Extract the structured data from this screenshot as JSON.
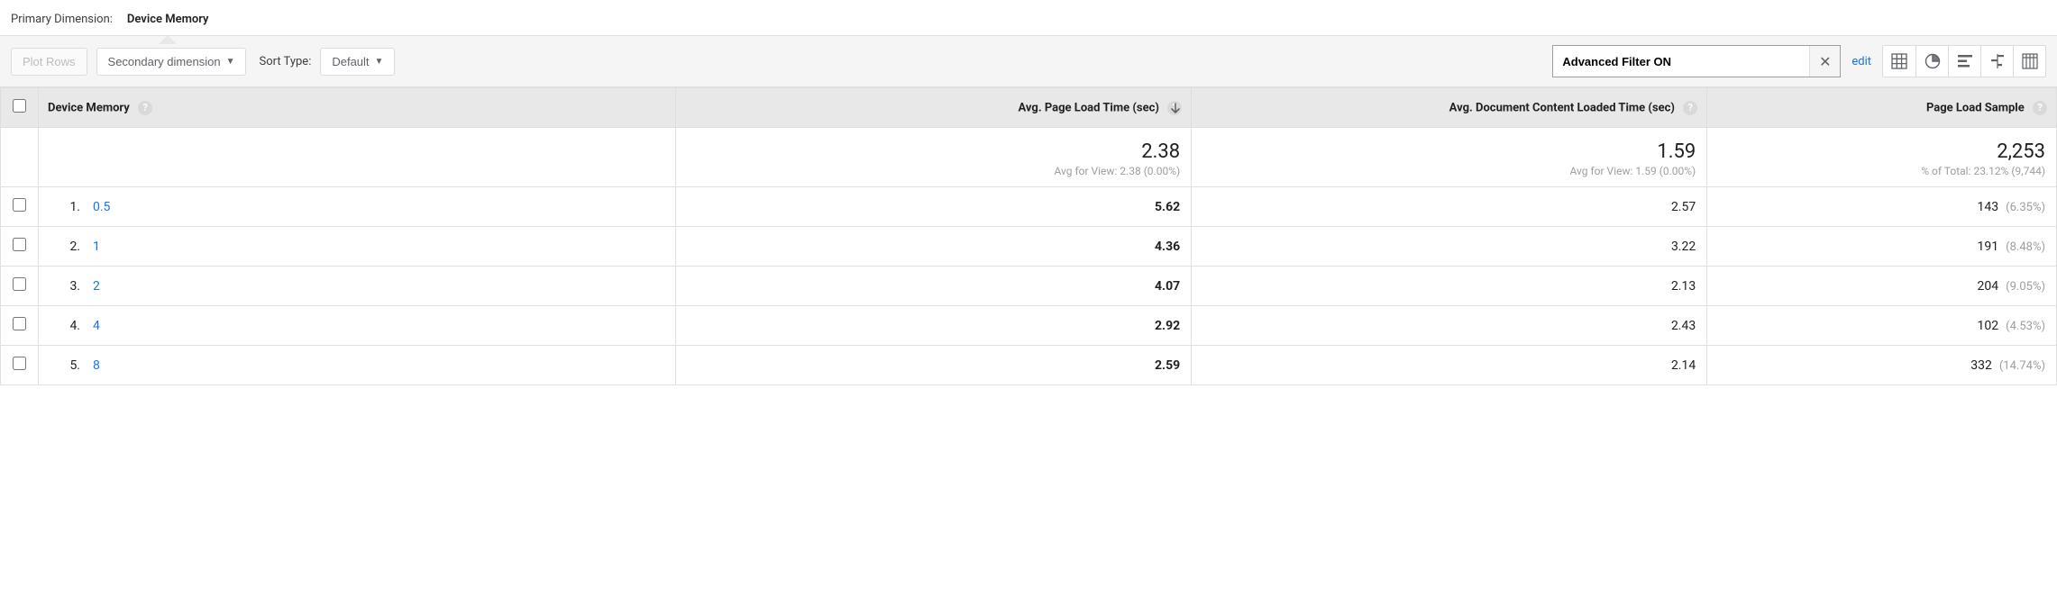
{
  "header": {
    "primary_dimension_label": "Primary Dimension:",
    "primary_dimension_value": "Device Memory"
  },
  "toolbar": {
    "plot_rows_label": "Plot Rows",
    "secondary_dimension_label": "Secondary dimension",
    "sort_type_label": "Sort Type:",
    "sort_default_label": "Default",
    "filter_value": "Advanced Filter ON",
    "edit_label": "edit"
  },
  "columns": {
    "dimension": "Device Memory",
    "m1": "Avg. Page Load Time (sec)",
    "m2": "Avg. Document Content Loaded Time (sec)",
    "m3": "Page Load Sample"
  },
  "summary": {
    "m1": {
      "value": "2.38",
      "sub": "Avg for View: 2.38 (0.00%)"
    },
    "m2": {
      "value": "1.59",
      "sub": "Avg for View: 1.59 (0.00%)"
    },
    "m3": {
      "value": "2,253",
      "sub": "% of Total: 23.12% (9,744)"
    }
  },
  "rows": [
    {
      "idx": "1.",
      "dim": "0.5",
      "m1": "5.62",
      "m2": "2.57",
      "m3": "143",
      "m3_pct": "(6.35%)"
    },
    {
      "idx": "2.",
      "dim": "1",
      "m1": "4.36",
      "m2": "3.22",
      "m3": "191",
      "m3_pct": "(8.48%)"
    },
    {
      "idx": "3.",
      "dim": "2",
      "m1": "4.07",
      "m2": "2.13",
      "m3": "204",
      "m3_pct": "(9.05%)"
    },
    {
      "idx": "4.",
      "dim": "4",
      "m1": "2.92",
      "m2": "2.43",
      "m3": "102",
      "m3_pct": "(4.53%)"
    },
    {
      "idx": "5.",
      "dim": "8",
      "m1": "2.59",
      "m2": "2.14",
      "m3": "332",
      "m3_pct": "(14.74%)"
    }
  ],
  "colors": {
    "link": "#1a73e8",
    "muted": "#9e9e9e",
    "header_bg": "#e8e8e8",
    "toolbar_bg": "#f5f5f5",
    "border": "#e0e0e0"
  }
}
